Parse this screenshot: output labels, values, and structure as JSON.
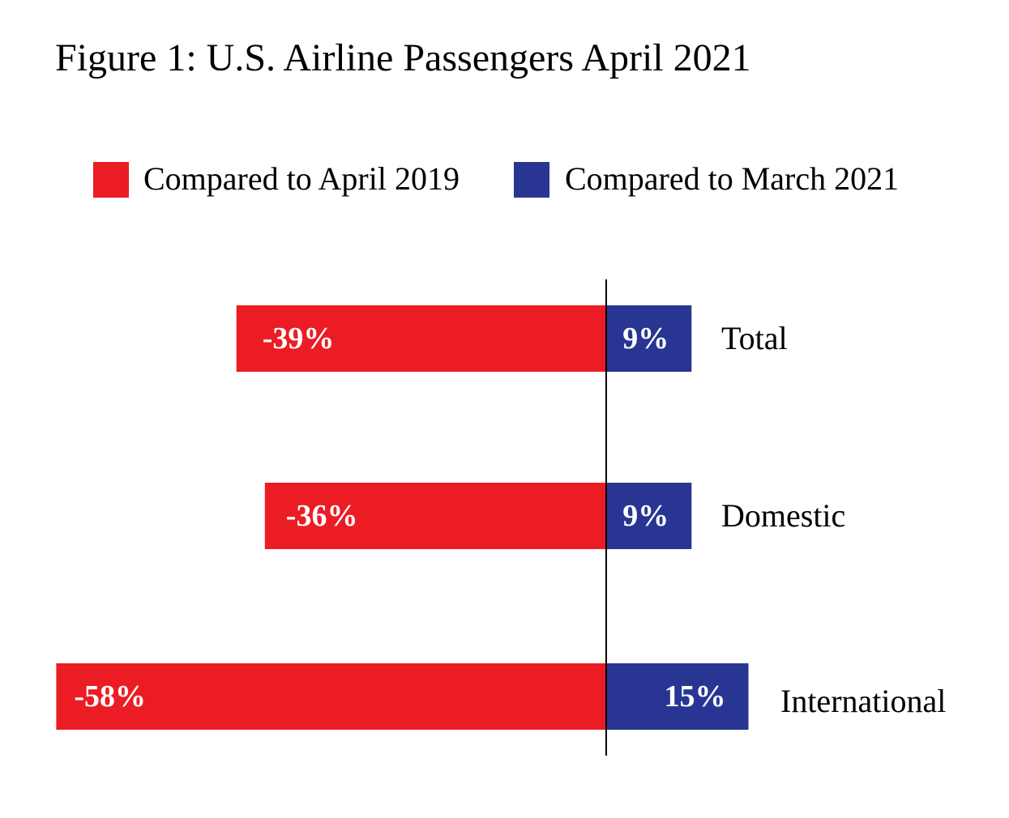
{
  "chart_data": {
    "type": "bar",
    "orientation": "horizontal",
    "layout": "diverging",
    "title": "Figure 1: U.S. Airline Passengers April 2021",
    "categories": [
      "Total",
      "Domestic",
      "International"
    ],
    "series": [
      {
        "name": "Compared to April 2019",
        "color": "#ec1c24",
        "values": [
          -39,
          -36,
          -58
        ],
        "labels": [
          "-39%",
          "-36%",
          "-58%"
        ]
      },
      {
        "name": "Compared to March 2021",
        "color": "#283593",
        "values": [
          9,
          9,
          15
        ],
        "labels": [
          "9%",
          "9%",
          "15%"
        ]
      }
    ],
    "unit": "%",
    "xlim": [
      -58,
      15
    ],
    "grid": false,
    "legend_position": "top"
  }
}
